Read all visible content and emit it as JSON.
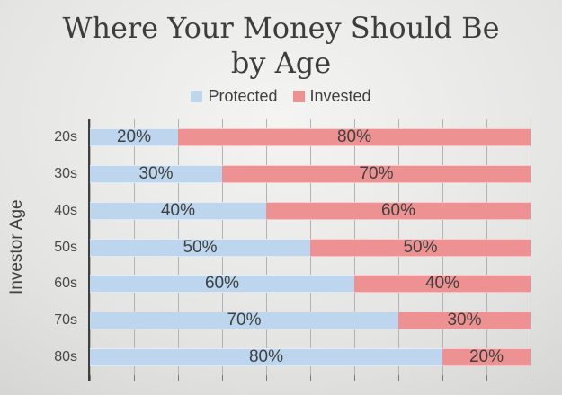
{
  "chart": {
    "title": "Where Your Money Should Be by Age",
    "ylabel": "Investor Age"
  },
  "legend": {
    "items": [
      {
        "label": "Protected"
      },
      {
        "label": "Invested"
      }
    ]
  },
  "colors": {
    "protected": "#bdd6ed",
    "invested": "#ee9192",
    "label_text": "#3f3f3f",
    "category_text": "#464646",
    "gridline": "#b3b3b2",
    "tick": "#7a7a7a",
    "axis_line": "#3f3f3f",
    "background_center": "#f4f4f3",
    "background_mid": "#e4e4e3",
    "background_edge": "#c6c6c5"
  },
  "chart_data": {
    "type": "bar",
    "orientation": "horizontal",
    "stacked": true,
    "title": "Where Your Money Should Be by Age",
    "xlabel": "",
    "ylabel": "Investor Age",
    "categories": [
      "20s",
      "30s",
      "40s",
      "50s",
      "60s",
      "70s",
      "80s"
    ],
    "series": [
      {
        "name": "Protected",
        "values": [
          20,
          30,
          40,
          50,
          60,
          70,
          80
        ],
        "labels": [
          "20%",
          "30%",
          "40%",
          "50%",
          "60%",
          "70%",
          "80%"
        ]
      },
      {
        "name": "Invested",
        "values": [
          80,
          70,
          60,
          50,
          40,
          30,
          20
        ],
        "labels": [
          "80%",
          "70%",
          "60%",
          "50%",
          "40%",
          "30%",
          "20%"
        ]
      }
    ],
    "xlim": [
      0,
      100
    ],
    "x_gridline_interval": 10,
    "grid": true,
    "legend_position": "top"
  }
}
